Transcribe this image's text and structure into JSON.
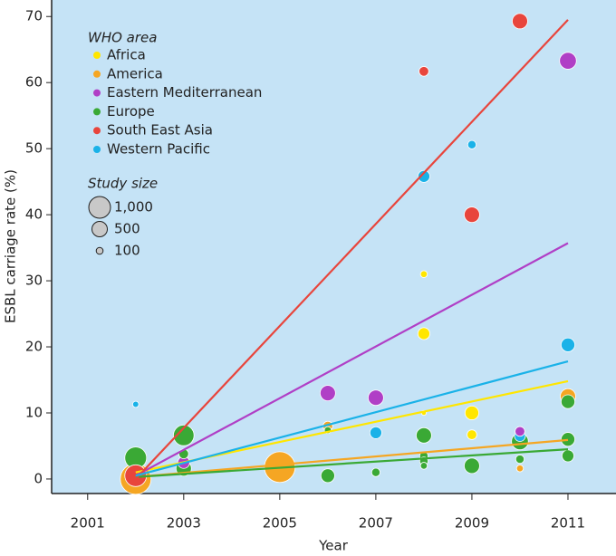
{
  "chart_data": {
    "type": "bubble",
    "xlabel": "Year",
    "ylabel": "ESBL carriage rate (%)",
    "xlim": [
      2000.25,
      2012
    ],
    "ylim": [
      -2.2,
      72.5
    ],
    "xticks": [
      2001,
      2003,
      2005,
      2007,
      2009,
      2011
    ],
    "yticks": [
      0,
      10,
      20,
      30,
      40,
      50,
      60,
      70
    ],
    "legend_title": "WHO area",
    "size_legend": {
      "title": "Study size",
      "sizes": [
        {
          "value": 1000,
          "label": "1,000"
        },
        500,
        100
      ]
    },
    "trend_x": [
      2002,
      2011
    ],
    "series": [
      {
        "name": "Africa",
        "color": "#ffe600",
        "x": [
          2008,
          2008,
          2009,
          2009,
          2008
        ],
        "values": [
          31,
          22,
          10,
          6.7,
          10
        ],
        "sizes": [
          100,
          300,
          400,
          200,
          50
        ],
        "trend": [
          1,
          14.8
        ]
      },
      {
        "name": "America",
        "color": "#f5a623",
        "x": [
          2002,
          2005,
          2006,
          2010,
          2011
        ],
        "values": [
          0,
          1.8,
          8,
          1.6,
          12.5
        ],
        "sizes": [
          2000,
          2000,
          200,
          100,
          500
        ],
        "trend": [
          0.3,
          5.9
        ]
      },
      {
        "name": "Eastern Mediterranean",
        "color": "#b03fc6",
        "x": [
          2011,
          2006,
          2007,
          2010,
          2003
        ],
        "values": [
          63.3,
          13,
          12.3,
          7.2,
          2.5
        ],
        "sizes": [
          600,
          500,
          500,
          200,
          300
        ],
        "trend": [
          0.5,
          35.7
        ]
      },
      {
        "name": "Europe",
        "color": "#3aa935",
        "x": [
          2002,
          2003,
          2003,
          2003,
          2006,
          2006,
          2007,
          2008,
          2008,
          2008,
          2008,
          2009,
          2010,
          2010,
          2011,
          2011,
          2011
        ],
        "values": [
          3.2,
          6.6,
          1.6,
          3.8,
          0.5,
          7.4,
          1,
          6.6,
          3.5,
          2.7,
          2,
          2,
          5.7,
          3,
          11.7,
          6,
          3.5
        ],
        "sizes": [
          1000,
          900,
          500,
          200,
          400,
          100,
          150,
          500,
          150,
          150,
          100,
          500,
          600,
          150,
          400,
          400,
          300
        ],
        "trend": [
          0.3,
          4.5
        ]
      },
      {
        "name": "South East Asia",
        "color": "#e8453c",
        "x": [
          2010,
          2008,
          2009,
          2002
        ],
        "values": [
          69.3,
          61.7,
          40,
          0.5
        ],
        "sizes": [
          500,
          200,
          500,
          1000
        ],
        "trend": [
          0,
          69.5
        ]
      },
      {
        "name": "Western Pacific",
        "color": "#1ab2e8",
        "x": [
          2002,
          2009,
          2008,
          2011,
          2007,
          2010
        ],
        "values": [
          11.3,
          50.6,
          45.8,
          20.3,
          7,
          6.5
        ],
        "sizes": [
          80,
          150,
          300,
          400,
          300,
          250
        ],
        "trend": [
          0.5,
          17.8
        ]
      }
    ]
  }
}
